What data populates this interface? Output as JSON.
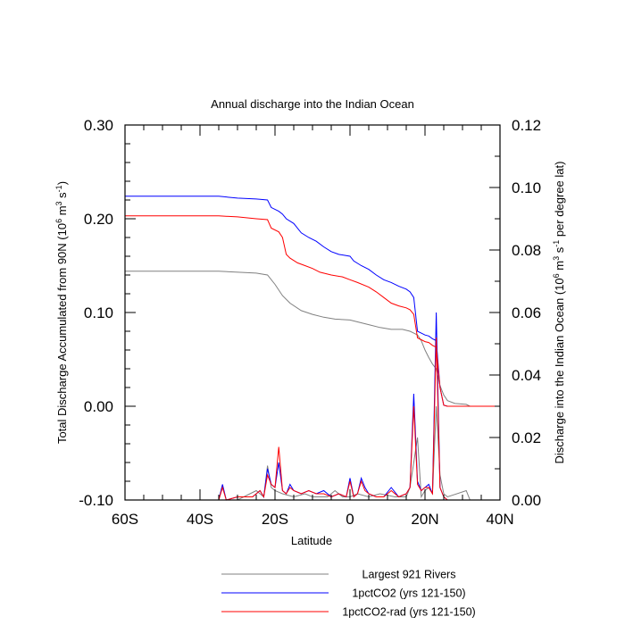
{
  "chart_data": {
    "type": "line",
    "title": "Annual discharge into the Indian Ocean",
    "xlabel": "Latitude",
    "ylabel_left": "Total Discharge Accumulated from 90N (10^6 m^3 s^-1)",
    "ylabel_right": "Discharge into the Indian Ocean (10^6 m^3 s^-1 per degree lat)",
    "xlim": [
      -60,
      40
    ],
    "ylim_left": [
      -0.1,
      0.3
    ],
    "ylim_right": [
      0.0,
      0.12
    ],
    "xticks": [
      {
        "value": -60,
        "label": "60S"
      },
      {
        "value": -40,
        "label": "40S"
      },
      {
        "value": -20,
        "label": "20S"
      },
      {
        "value": 0,
        "label": "0"
      },
      {
        "value": 20,
        "label": "20N"
      },
      {
        "value": 40,
        "label": "40N"
      }
    ],
    "yticks_left": [
      {
        "value": 0.3,
        "label": "0.30"
      },
      {
        "value": 0.2,
        "label": "0.20"
      },
      {
        "value": 0.1,
        "label": "0.10"
      },
      {
        "value": 0.0,
        "label": "0.00"
      },
      {
        "value": -0.1,
        "label": "-0.10"
      }
    ],
    "yticks_right": [
      {
        "value": 0.12,
        "label": "0.12"
      },
      {
        "value": 0.1,
        "label": "0.10"
      },
      {
        "value": 0.08,
        "label": "0.08"
      },
      {
        "value": 0.06,
        "label": "0.06"
      },
      {
        "value": 0.04,
        "label": "0.04"
      },
      {
        "value": 0.02,
        "label": "0.02"
      },
      {
        "value": 0.0,
        "label": "0.00"
      }
    ],
    "legend_position": "bottom",
    "series": [
      {
        "name": "Largest 921 Rivers",
        "color": "#808080",
        "cumulative": [
          [
            -60,
            0.144
          ],
          [
            -35,
            0.144
          ],
          [
            -25,
            0.142
          ],
          [
            -22,
            0.14
          ],
          [
            -20,
            0.13
          ],
          [
            -18,
            0.118
          ],
          [
            -16,
            0.11
          ],
          [
            -13,
            0.102
          ],
          [
            -10,
            0.098
          ],
          [
            -7,
            0.095
          ],
          [
            -4,
            0.093
          ],
          [
            0,
            0.092
          ],
          [
            2,
            0.09
          ],
          [
            5,
            0.087
          ],
          [
            8,
            0.084
          ],
          [
            11,
            0.082
          ],
          [
            14,
            0.082
          ],
          [
            16,
            0.08
          ],
          [
            17,
            0.078
          ],
          [
            18,
            0.076
          ],
          [
            19,
            0.07
          ],
          [
            20,
            0.06
          ],
          [
            21,
            0.052
          ],
          [
            22,
            0.045
          ],
          [
            23,
            0.04
          ],
          [
            24,
            0.022
          ],
          [
            25,
            0.012
          ],
          [
            26,
            0.006
          ],
          [
            28,
            0.003
          ],
          [
            31,
            0.002
          ],
          [
            32,
            0.0
          ],
          [
            40,
            0.0
          ]
        ],
        "per_degree": [
          [
            -60,
            0.0
          ],
          [
            -30,
            0.0
          ],
          [
            -25,
            0.003
          ],
          [
            -23,
            0.001
          ],
          [
            -22,
            0.011
          ],
          [
            -21,
            0.004
          ],
          [
            -20,
            0.003
          ],
          [
            -18,
            0.002
          ],
          [
            -15,
            0.001
          ],
          [
            -12,
            0.002
          ],
          [
            -10,
            0.001
          ],
          [
            -6,
            0.001
          ],
          [
            -4,
            0.003
          ],
          [
            -2,
            0.001
          ],
          [
            0,
            0.001
          ],
          [
            2,
            0.002
          ],
          [
            5,
            0.001
          ],
          [
            8,
            0.002
          ],
          [
            12,
            0.001
          ],
          [
            15,
            0.001
          ],
          [
            16,
            0.004
          ],
          [
            17,
            0.012
          ],
          [
            18,
            0.02
          ],
          [
            19,
            0.001
          ],
          [
            20,
            0.003
          ],
          [
            21,
            0.004
          ],
          [
            22,
            0.002
          ],
          [
            23,
            0.03
          ],
          [
            24,
            0.008
          ],
          [
            25,
            0.002
          ],
          [
            26,
            0.001
          ],
          [
            31,
            0.003
          ],
          [
            32,
            0.0
          ],
          [
            40,
            0.0
          ]
        ]
      },
      {
        "name": "1pctCO2 (yrs 121-150)",
        "color": "#0000ff",
        "cumulative": [
          [
            -60,
            0.224
          ],
          [
            -35,
            0.224
          ],
          [
            -30,
            0.222
          ],
          [
            -25,
            0.221
          ],
          [
            -22,
            0.22
          ],
          [
            -21,
            0.212
          ],
          [
            -19,
            0.208
          ],
          [
            -18,
            0.205
          ],
          [
            -17,
            0.2
          ],
          [
            -15,
            0.195
          ],
          [
            -13,
            0.185
          ],
          [
            -11,
            0.18
          ],
          [
            -9,
            0.176
          ],
          [
            -7,
            0.17
          ],
          [
            -5,
            0.165
          ],
          [
            -3,
            0.162
          ],
          [
            0,
            0.16
          ],
          [
            1,
            0.155
          ],
          [
            3,
            0.15
          ],
          [
            5,
            0.146
          ],
          [
            7,
            0.14
          ],
          [
            9,
            0.135
          ],
          [
            11,
            0.132
          ],
          [
            13,
            0.128
          ],
          [
            15,
            0.125
          ],
          [
            16,
            0.122
          ],
          [
            17,
            0.116
          ],
          [
            18,
            0.08
          ],
          [
            19,
            0.078
          ],
          [
            20,
            0.076
          ],
          [
            21,
            0.075
          ],
          [
            22,
            0.072
          ],
          [
            23,
            0.07
          ],
          [
            24,
            0.02
          ],
          [
            25,
            0.001
          ],
          [
            26,
            0.0
          ],
          [
            40,
            0.0
          ]
        ],
        "per_degree": [
          [
            -60,
            0.0
          ],
          [
            -35,
            0.0
          ],
          [
            -34,
            0.005
          ],
          [
            -33,
            0.0
          ],
          [
            -30,
            0.001
          ],
          [
            -26,
            0.001
          ],
          [
            -24,
            0.003
          ],
          [
            -23,
            0.001
          ],
          [
            -22,
            0.01
          ],
          [
            -21,
            0.005
          ],
          [
            -20,
            0.004
          ],
          [
            -19,
            0.012
          ],
          [
            -18,
            0.003
          ],
          [
            -17,
            0.002
          ],
          [
            -16,
            0.005
          ],
          [
            -15,
            0.003
          ],
          [
            -13,
            0.002
          ],
          [
            -11,
            0.003
          ],
          [
            -9,
            0.002
          ],
          [
            -7,
            0.003
          ],
          [
            -5,
            0.001
          ],
          [
            -3,
            0.002
          ],
          [
            -1,
            0.001
          ],
          [
            0,
            0.007
          ],
          [
            1,
            0.001
          ],
          [
            2,
            0.002
          ],
          [
            3,
            0.007
          ],
          [
            4,
            0.004
          ],
          [
            5,
            0.002
          ],
          [
            7,
            0.001
          ],
          [
            9,
            0.001
          ],
          [
            11,
            0.004
          ],
          [
            13,
            0.001
          ],
          [
            15,
            0.002
          ],
          [
            16,
            0.004
          ],
          [
            17,
            0.034
          ],
          [
            18,
            0.006
          ],
          [
            19,
            0.003
          ],
          [
            20,
            0.004
          ],
          [
            21,
            0.005
          ],
          [
            22,
            0.002
          ],
          [
            23,
            0.06
          ],
          [
            24,
            0.004
          ],
          [
            25,
            0.001
          ],
          [
            26,
            0.0
          ],
          [
            40,
            0.0
          ]
        ]
      },
      {
        "name": "1pctCO2-rad (yrs 121-150)",
        "color": "#ff0000",
        "cumulative": [
          [
            -60,
            0.203
          ],
          [
            -35,
            0.203
          ],
          [
            -30,
            0.202
          ],
          [
            -25,
            0.2
          ],
          [
            -22,
            0.199
          ],
          [
            -21,
            0.19
          ],
          [
            -19,
            0.186
          ],
          [
            -18,
            0.18
          ],
          [
            -17,
            0.162
          ],
          [
            -16,
            0.158
          ],
          [
            -14,
            0.153
          ],
          [
            -12,
            0.15
          ],
          [
            -10,
            0.147
          ],
          [
            -8,
            0.143
          ],
          [
            -5,
            0.14
          ],
          [
            -2,
            0.138
          ],
          [
            0,
            0.135
          ],
          [
            2,
            0.132
          ],
          [
            5,
            0.127
          ],
          [
            7,
            0.122
          ],
          [
            9,
            0.116
          ],
          [
            11,
            0.11
          ],
          [
            13,
            0.107
          ],
          [
            15,
            0.105
          ],
          [
            16,
            0.103
          ],
          [
            17,
            0.098
          ],
          [
            18,
            0.073
          ],
          [
            19,
            0.071
          ],
          [
            20,
            0.069
          ],
          [
            21,
            0.068
          ],
          [
            22,
            0.065
          ],
          [
            23,
            0.063
          ],
          [
            24,
            0.02
          ],
          [
            25,
            0.001
          ],
          [
            26,
            0.0
          ],
          [
            40,
            0.0
          ]
        ],
        "per_degree": [
          [
            -60,
            0.0
          ],
          [
            -35,
            0.0
          ],
          [
            -34,
            0.004
          ],
          [
            -33,
            0.0
          ],
          [
            -30,
            0.001
          ],
          [
            -26,
            0.001
          ],
          [
            -24,
            0.003
          ],
          [
            -23,
            0.001
          ],
          [
            -22,
            0.008
          ],
          [
            -21,
            0.005
          ],
          [
            -20,
            0.004
          ],
          [
            -19,
            0.017
          ],
          [
            -18,
            0.003
          ],
          [
            -17,
            0.002
          ],
          [
            -16,
            0.004
          ],
          [
            -15,
            0.003
          ],
          [
            -13,
            0.002
          ],
          [
            -11,
            0.003
          ],
          [
            -9,
            0.002
          ],
          [
            -7,
            0.002
          ],
          [
            -5,
            0.001
          ],
          [
            -3,
            0.002
          ],
          [
            -1,
            0.001
          ],
          [
            0,
            0.006
          ],
          [
            1,
            0.001
          ],
          [
            2,
            0.002
          ],
          [
            3,
            0.006
          ],
          [
            4,
            0.003
          ],
          [
            5,
            0.002
          ],
          [
            7,
            0.001
          ],
          [
            9,
            0.001
          ],
          [
            11,
            0.003
          ],
          [
            13,
            0.001
          ],
          [
            15,
            0.002
          ],
          [
            16,
            0.004
          ],
          [
            17,
            0.03
          ],
          [
            18,
            0.005
          ],
          [
            19,
            0.003
          ],
          [
            20,
            0.004
          ],
          [
            21,
            0.004
          ],
          [
            22,
            0.002
          ],
          [
            23,
            0.052
          ],
          [
            24,
            0.004
          ],
          [
            25,
            0.001
          ],
          [
            26,
            0.0
          ],
          [
            40,
            0.0
          ]
        ]
      }
    ]
  }
}
